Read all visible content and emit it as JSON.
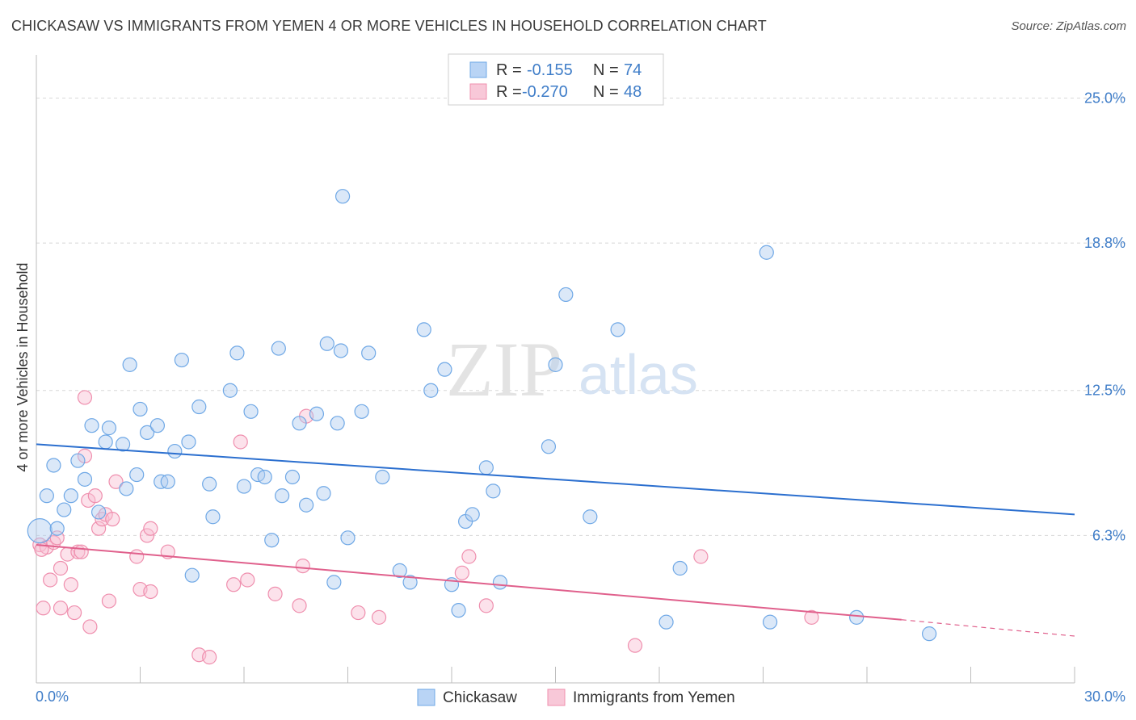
{
  "title": "CHICKASAW VS IMMIGRANTS FROM YEMEN 4 OR MORE VEHICLES IN HOUSEHOLD CORRELATION CHART",
  "source": "Source: ZipAtlas.com",
  "watermark": {
    "zip": "ZIP",
    "atlas": "atlas"
  },
  "legend": {
    "r_label": "R =",
    "n_label": "N =",
    "rows": [
      {
        "r": "-0.155",
        "n": "74"
      },
      {
        "r": "-0.270",
        "n": "48"
      }
    ]
  },
  "bottom_legend": [
    "Chickasaw",
    "Immigrants from Yemen"
  ],
  "chart_data": {
    "type": "scatter",
    "title": "CHICKASAW VS IMMIGRANTS FROM YEMEN 4 OR MORE VEHICLES IN HOUSEHOLD CORRELATION CHART",
    "xlabel": "",
    "ylabel": "4 or more Vehicles in Household",
    "xlim": [
      0,
      30
    ],
    "ylim": [
      0,
      26.5
    ],
    "x_tick_labels": [
      "0.0%",
      "30.0%"
    ],
    "y_ticks": [
      6.3,
      12.5,
      18.8,
      25.0
    ],
    "y_tick_labels": [
      "6.3%",
      "12.5%",
      "18.8%",
      "25.0%"
    ],
    "grid": true,
    "legend_position": "top-center",
    "colors": {
      "chickasaw": "#6fa8e6",
      "yemen": "#ef8fae",
      "chickasaw_line": "#2b6fcf",
      "yemen_line": "#e0608c"
    },
    "series": [
      {
        "name": "Chickasaw",
        "r": -0.155,
        "n": 74,
        "trend": {
          "x": [
            0,
            30
          ],
          "y": [
            10.2,
            7.2
          ]
        },
        "points": [
          [
            0.1,
            6.5
          ],
          [
            0.3,
            8.0
          ],
          [
            0.5,
            9.3
          ],
          [
            0.6,
            6.6
          ],
          [
            0.8,
            7.4
          ],
          [
            1.0,
            8.0
          ],
          [
            1.4,
            8.7
          ],
          [
            1.2,
            9.5
          ],
          [
            1.6,
            11.0
          ],
          [
            1.8,
            7.3
          ],
          [
            2.0,
            10.3
          ],
          [
            2.1,
            10.9
          ],
          [
            2.5,
            10.2
          ],
          [
            2.6,
            8.3
          ],
          [
            2.7,
            13.6
          ],
          [
            2.9,
            8.9
          ],
          [
            3.0,
            11.7
          ],
          [
            3.2,
            10.7
          ],
          [
            3.5,
            11.0
          ],
          [
            3.6,
            8.6
          ],
          [
            3.8,
            8.6
          ],
          [
            4.0,
            9.9
          ],
          [
            4.2,
            13.8
          ],
          [
            4.4,
            10.3
          ],
          [
            4.5,
            4.6
          ],
          [
            4.7,
            11.8
          ],
          [
            5.0,
            8.5
          ],
          [
            5.1,
            7.1
          ],
          [
            5.6,
            12.5
          ],
          [
            5.8,
            14.1
          ],
          [
            6.0,
            8.4
          ],
          [
            6.2,
            11.6
          ],
          [
            6.4,
            8.9
          ],
          [
            6.6,
            8.8
          ],
          [
            6.8,
            6.1
          ],
          [
            7.0,
            14.3
          ],
          [
            7.1,
            8.0
          ],
          [
            7.4,
            8.8
          ],
          [
            7.6,
            11.1
          ],
          [
            7.8,
            7.6
          ],
          [
            8.1,
            11.5
          ],
          [
            8.3,
            8.1
          ],
          [
            8.4,
            14.5
          ],
          [
            8.6,
            4.3
          ],
          [
            8.7,
            11.1
          ],
          [
            8.8,
            14.2
          ],
          [
            9.0,
            6.2
          ],
          [
            8.85,
            20.8
          ],
          [
            9.4,
            11.6
          ],
          [
            9.6,
            14.1
          ],
          [
            10.0,
            8.8
          ],
          [
            10.5,
            4.8
          ],
          [
            10.8,
            4.3
          ],
          [
            11.2,
            15.1
          ],
          [
            11.4,
            12.5
          ],
          [
            11.8,
            13.4
          ],
          [
            12.0,
            4.2
          ],
          [
            12.2,
            3.1
          ],
          [
            12.4,
            6.9
          ],
          [
            12.6,
            7.2
          ],
          [
            13.0,
            9.2
          ],
          [
            13.2,
            8.2
          ],
          [
            13.4,
            4.3
          ],
          [
            14.8,
            10.1
          ],
          [
            15.0,
            13.6
          ],
          [
            15.3,
            16.6
          ],
          [
            16.0,
            7.1
          ],
          [
            16.8,
            15.1
          ],
          [
            18.2,
            2.6
          ],
          [
            18.6,
            4.9
          ],
          [
            21.1,
            18.4
          ],
          [
            21.2,
            2.6
          ],
          [
            23.7,
            2.8
          ],
          [
            25.8,
            2.1
          ]
        ]
      },
      {
        "name": "Immigrants from Yemen",
        "r": -0.27,
        "n": 48,
        "trend": {
          "x": [
            0,
            25
          ],
          "y": [
            5.9,
            2.7
          ]
        },
        "trend_dashed": {
          "x": [
            25,
            30
          ],
          "y": [
            2.7,
            2.0
          ]
        },
        "points": [
          [
            0.1,
            5.9
          ],
          [
            0.2,
            3.2
          ],
          [
            0.3,
            5.8
          ],
          [
            0.4,
            4.4
          ],
          [
            0.5,
            6.0
          ],
          [
            0.6,
            6.2
          ],
          [
            0.7,
            4.9
          ],
          [
            0.7,
            3.2
          ],
          [
            0.9,
            5.5
          ],
          [
            1.0,
            4.2
          ],
          [
            1.1,
            3.0
          ],
          [
            1.2,
            5.6
          ],
          [
            1.3,
            5.6
          ],
          [
            1.4,
            9.7
          ],
          [
            1.4,
            12.2
          ],
          [
            1.5,
            7.8
          ],
          [
            1.55,
            2.4
          ],
          [
            1.7,
            8.0
          ],
          [
            1.8,
            6.6
          ],
          [
            1.9,
            7.0
          ],
          [
            2.0,
            7.2
          ],
          [
            2.1,
            3.5
          ],
          [
            2.2,
            7.0
          ],
          [
            2.3,
            8.6
          ],
          [
            2.9,
            5.4
          ],
          [
            3.0,
            4.0
          ],
          [
            3.2,
            6.3
          ],
          [
            3.3,
            6.6
          ],
          [
            3.3,
            3.9
          ],
          [
            3.8,
            5.6
          ],
          [
            4.7,
            1.2
          ],
          [
            5.0,
            1.1
          ],
          [
            5.7,
            4.2
          ],
          [
            5.9,
            10.3
          ],
          [
            6.1,
            4.4
          ],
          [
            6.9,
            3.8
          ],
          [
            7.6,
            3.3
          ],
          [
            7.7,
            5.0
          ],
          [
            7.8,
            11.4
          ],
          [
            9.3,
            3.0
          ],
          [
            9.9,
            2.8
          ],
          [
            12.3,
            4.7
          ],
          [
            12.5,
            5.4
          ],
          [
            13.0,
            3.3
          ],
          [
            17.3,
            1.6
          ],
          [
            19.2,
            5.4
          ],
          [
            22.4,
            2.8
          ],
          [
            0.15,
            5.7
          ]
        ]
      }
    ]
  }
}
